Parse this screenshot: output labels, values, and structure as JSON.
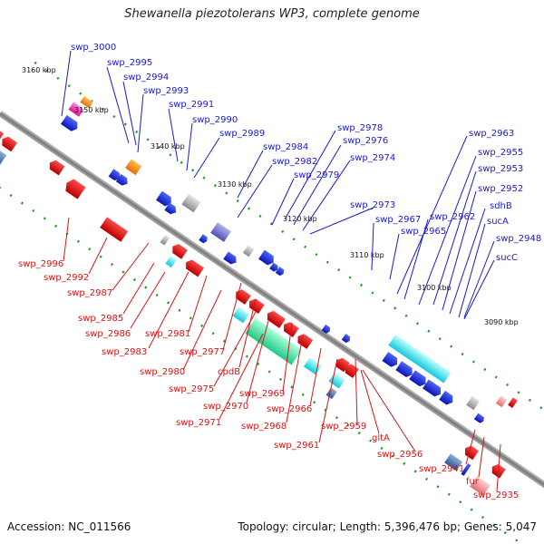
{
  "title": "Shewanella piezotolerans WP3, complete genome",
  "footer": {
    "accession": "Accession: NC_011566",
    "summary": "Topology: circular; Length: 5,396,476 bp; Genes: 5,047"
  },
  "colors": {
    "forward_label": "#1a1acc",
    "reverse_label": "#dd1111",
    "forward_gene": "#1a2ee0",
    "reverse_gene": "#e01010",
    "backbone": "#888888"
  },
  "ticks": [
    "3160 kbp",
    "3150 kbp",
    "3140 kbp",
    "3130 kbp",
    "3120 kbp",
    "3110 kbp",
    "3100 kbp",
    "3090 kbp"
  ],
  "forward_labels": [
    "swp_3000",
    "swp_2995",
    "swp_2994",
    "swp_2993",
    "swp_2991",
    "swp_2990",
    "swp_2989",
    "swp_2984",
    "swp_2982",
    "swp_2979",
    "swp_2978",
    "swp_2976",
    "swp_2974",
    "swp_2973",
    "swp_2967",
    "swp_2965",
    "swp_2962",
    "swp_2963",
    "swp_2955",
    "swp_2953",
    "swp_2952",
    "sdhB",
    "sucA",
    "swp_2948",
    "sucC"
  ],
  "reverse_labels": [
    "swp_2996",
    "swp_2992",
    "swp_2987",
    "swp_2985",
    "swp_2986",
    "swp_2983",
    "swp_2981",
    "swp_2977",
    "swp_2980",
    "cpdB",
    "swp_2975",
    "swp_2970",
    "swp_2969",
    "swp_2971",
    "swp_2968",
    "swp_2966",
    "swp_2961",
    "swp_2959",
    "gltA",
    "swp_2956",
    "swp_2941",
    "fur",
    "swp_2935"
  ]
}
